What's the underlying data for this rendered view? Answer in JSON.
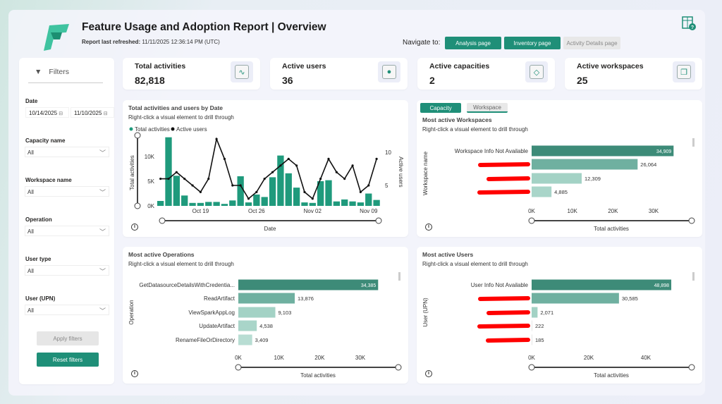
{
  "header": {
    "title": "Feature Usage and Adoption Report | Overview",
    "refresh_label": "Report last refreshed:",
    "refresh_value": "11/11/2025 12:36:14 PM (UTC)",
    "navigate_label": "Navigate to:",
    "nav_buttons": [
      "Analysis page",
      "Inventory page",
      "Activity Details page"
    ]
  },
  "kpis": [
    {
      "label": "Total activities",
      "value": "82,818",
      "icon": "pulse-icon"
    },
    {
      "label": "Active users",
      "value": "36",
      "icon": "user-icon"
    },
    {
      "label": "Active capacities",
      "value": "2",
      "icon": "diamond-icon"
    },
    {
      "label": "Active workspaces",
      "value": "25",
      "icon": "stacked-layers-icon"
    }
  ],
  "filters": {
    "title": "Filters",
    "date_label": "Date",
    "date_from": "10/14/2025",
    "date_to": "11/10/2025",
    "dropdowns": [
      {
        "label": "Capacity name",
        "value": "All"
      },
      {
        "label": "Workspace name",
        "value": "All"
      },
      {
        "label": "Operation",
        "value": "All"
      },
      {
        "label": "User type",
        "value": "All"
      },
      {
        "label": "User (UPN)",
        "value": "All"
      }
    ],
    "apply_label": "Apply filters",
    "reset_label": "Reset filters"
  },
  "colors": {
    "accent": "#1f8f78",
    "bar_teal": "#1f9a7c",
    "redaction": "#ff0000"
  },
  "chart_data": [
    {
      "type": "bar+line",
      "title": "Total activities and users by Date",
      "subtitle": "Right-click a visual element to drill through",
      "legend": [
        "Total activities",
        "Active users"
      ],
      "legend_position": "top-left",
      "xlabel": "Date",
      "ylabel": "Total activities",
      "y2label": "Active users",
      "x_ticks": [
        "Oct 19",
        "Oct 26",
        "Nov 02",
        "Nov 09"
      ],
      "y_ticks": [
        "0K",
        "5K",
        "10K"
      ],
      "y2_ticks": [
        "5",
        "10"
      ],
      "x": [
        "Oct 14",
        "Oct 15",
        "Oct 16",
        "Oct 17",
        "Oct 18",
        "Oct 19",
        "Oct 20",
        "Oct 21",
        "Oct 22",
        "Oct 23",
        "Oct 24",
        "Oct 25",
        "Oct 26",
        "Oct 27",
        "Oct 28",
        "Oct 29",
        "Oct 30",
        "Oct 31",
        "Nov 01",
        "Nov 02",
        "Nov 03",
        "Nov 04",
        "Nov 05",
        "Nov 06",
        "Nov 07",
        "Nov 08",
        "Nov 09",
        "Nov 10"
      ],
      "series": [
        {
          "name": "Total activities",
          "values": [
            1000,
            13900,
            6100,
            2100,
            600,
            600,
            800,
            800,
            400,
            1100,
            6000,
            700,
            2300,
            1800,
            5800,
            10200,
            6600,
            3700,
            700,
            600,
            5000,
            5200,
            900,
            1300,
            900,
            700,
            2500,
            1200
          ]
        },
        {
          "name": "Active users",
          "values": [
            6,
            6,
            7,
            6,
            5,
            4,
            6,
            12,
            9,
            5,
            5,
            3,
            4,
            6,
            7,
            8,
            9,
            8,
            4,
            3,
            6,
            9,
            7,
            6,
            8,
            4,
            5,
            9
          ]
        }
      ]
    },
    {
      "type": "bar",
      "orientation": "horizontal",
      "tabs": [
        "Capacity",
        "Workspace"
      ],
      "title": "Most active Workspaces",
      "subtitle": "Right-click a visual element to drill through",
      "ylabel": "Workspace name",
      "xlabel": "Total activities",
      "x_ticks": [
        "0K",
        "10K",
        "20K",
        "30K"
      ],
      "xlim": [
        0,
        30000
      ],
      "categories": [
        "Workspace Info Not Available",
        "",
        "",
        ""
      ],
      "values": [
        34909,
        26064,
        12309,
        4885
      ],
      "value_labels": [
        "34,909",
        "26,064",
        "12,309",
        "4,885"
      ]
    },
    {
      "type": "bar",
      "orientation": "horizontal",
      "title": "Most active Operations",
      "subtitle": "Right-click a visual element to drill through",
      "ylabel": "Operation",
      "xlabel": "Total activities",
      "x_ticks": [
        "0K",
        "10K",
        "20K",
        "30K"
      ],
      "xlim": [
        0,
        30000
      ],
      "categories": [
        "GetDatasourceDetailsWithCredentia...",
        "ReadArtifact",
        "ViewSparkAppLog",
        "UpdateArtifact",
        "RenameFileOrDirectory"
      ],
      "values": [
        34385,
        13876,
        9103,
        4538,
        3409
      ],
      "value_labels": [
        "34,385",
        "13,876",
        "9,103",
        "4,538",
        "3,409"
      ]
    },
    {
      "type": "bar",
      "orientation": "horizontal",
      "title": "Most active Users",
      "subtitle": "Right-click a visual element to drill through",
      "ylabel": "User (UPN)",
      "xlabel": "Total activities",
      "x_ticks": [
        "0K",
        "20K",
        "40K"
      ],
      "xlim": [
        0,
        40000
      ],
      "categories": [
        "User Info Not Available",
        "",
        "",
        "",
        ""
      ],
      "values": [
        48898,
        30585,
        2071,
        222,
        185
      ],
      "value_labels": [
        "48,898",
        "30,585",
        "2,071",
        "222",
        "185"
      ]
    }
  ]
}
